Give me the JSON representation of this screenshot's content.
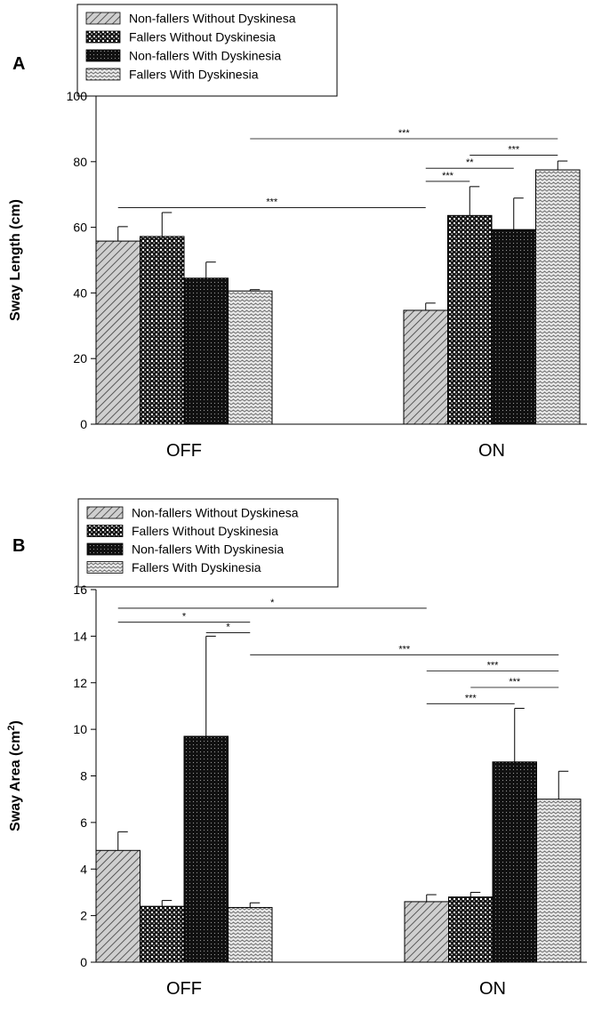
{
  "figure": {
    "panels": [
      {
        "panel_label": "A",
        "chart_data": {
          "type": "bar",
          "title": "",
          "xlabel": "",
          "ylabel": "Sway Length (cm)",
          "ylim": [
            0,
            100
          ],
          "yticks": [
            0,
            20,
            40,
            60,
            80,
            100
          ],
          "categories": [
            "OFF",
            "ON"
          ],
          "series": [
            {
              "name": "Non-fallers Without Dyskinesa",
              "pattern": "hatch",
              "values": [
                55.8,
                34.7
              ],
              "errors": [
                4.4,
                2.2
              ]
            },
            {
              "name": "Fallers Without Dyskinesia",
              "pattern": "check",
              "values": [
                57.2,
                63.6
              ],
              "errors": [
                7.3,
                8.8
              ]
            },
            {
              "name": "Non-fallers With Dyskinesia",
              "pattern": "dark",
              "values": [
                44.5,
                59.3
              ],
              "errors": [
                4.9,
                9.6
              ]
            },
            {
              "name": "Fallers With Dyskinesia",
              "pattern": "wave",
              "values": [
                40.6,
                77.5
              ],
              "errors": [
                0.4,
                2.7
              ]
            }
          ],
          "significance": [
            {
              "from": [
                0,
                0
              ],
              "to": [
                1,
                0
              ],
              "label": "***",
              "y": 66
            },
            {
              "from": [
                0,
                3
              ],
              "to": [
                1,
                3
              ],
              "label": "***",
              "y": 87
            },
            {
              "from": [
                1,
                0
              ],
              "to": [
                1,
                1
              ],
              "label": "***",
              "y": 74
            },
            {
              "from": [
                1,
                0
              ],
              "to": [
                1,
                2
              ],
              "label": "**",
              "y": 78
            },
            {
              "from": [
                1,
                1
              ],
              "to": [
                1,
                3
              ],
              "label": "***",
              "y": 82
            }
          ]
        }
      },
      {
        "panel_label": "B",
        "chart_data": {
          "type": "bar",
          "title": "",
          "xlabel": "",
          "ylabel": "Sway Area (cm",
          "ylabel_sup": "2",
          "ylabel_tail": ")",
          "ylim": [
            0,
            16
          ],
          "yticks": [
            0,
            2,
            4,
            6,
            8,
            10,
            12,
            14,
            16
          ],
          "categories": [
            "OFF",
            "ON"
          ],
          "series": [
            {
              "name": "Non-fallers Without Dyskinesa",
              "pattern": "hatch",
              "values": [
                4.8,
                2.6
              ],
              "errors": [
                0.8,
                0.3
              ]
            },
            {
              "name": "Fallers Without Dyskinesia",
              "pattern": "check",
              "values": [
                2.4,
                2.8
              ],
              "errors": [
                0.25,
                0.2
              ]
            },
            {
              "name": "Non-fallers With Dyskinesia",
              "pattern": "dark",
              "values": [
                9.7,
                8.6
              ],
              "errors": [
                4.3,
                2.3
              ]
            },
            {
              "name": "Fallers With Dyskinesia",
              "pattern": "wave",
              "values": [
                2.35,
                7.0
              ],
              "errors": [
                0.2,
                1.2
              ]
            }
          ],
          "significance": [
            {
              "from": [
                0,
                0
              ],
              "to": [
                1,
                0
              ],
              "label": "*",
              "y": 15.2
            },
            {
              "from": [
                0,
                0
              ],
              "to": [
                0,
                3
              ],
              "label": "*",
              "y": 14.6
            },
            {
              "from": [
                0,
                2
              ],
              "to": [
                0,
                3
              ],
              "label": "*",
              "y": 14.15
            },
            {
              "from": [
                0,
                3
              ],
              "to": [
                1,
                3
              ],
              "label": "***",
              "y": 13.2
            },
            {
              "from": [
                1,
                0
              ],
              "to": [
                1,
                3
              ],
              "label": "***",
              "y": 12.5
            },
            {
              "from": [
                1,
                1
              ],
              "to": [
                1,
                3
              ],
              "label": "***",
              "y": 11.8
            },
            {
              "from": [
                1,
                0
              ],
              "to": [
                1,
                2
              ],
              "label": "***",
              "y": 11.1
            }
          ]
        }
      }
    ]
  }
}
